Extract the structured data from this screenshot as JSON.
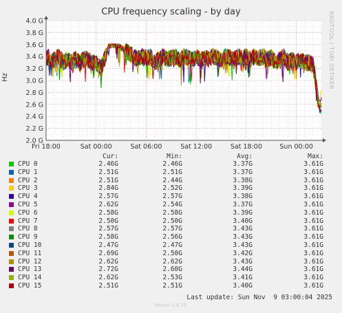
{
  "title": "CPU frequency scaling - by day",
  "side_label": "RRDTOOL / TOBI OETIKER",
  "legend_headers": {
    "cur": "Cur:",
    "min": "Min:",
    "avg": "Avg:",
    "max": "Max:"
  },
  "last_update": "Last update: Sun Nov  9 03:00:04 2025",
  "version": "Munin 2.0.73",
  "chart_data": {
    "type": "line",
    "title": "CPU frequency scaling - by day",
    "ylabel": "Hz",
    "ylim": [
      2.0,
      4.0
    ],
    "yunit": "G",
    "yticks": [
      "2.0 G",
      "2.2 G",
      "2.4 G",
      "2.6 G",
      "2.8 G",
      "3.0 G",
      "3.2 G",
      "3.4 G",
      "3.6 G",
      "3.8 G",
      "4.0 G"
    ],
    "yticks_values": [
      2.0,
      2.2,
      2.4,
      2.6,
      2.8,
      3.0,
      3.2,
      3.4,
      3.6,
      3.8,
      4.0
    ],
    "xrange_hours": [
      0,
      33
    ],
    "xticks": [
      {
        "label": "Fri 18:00",
        "hour": 0
      },
      {
        "label": "Sat 00:00",
        "hour": 6
      },
      {
        "label": "Sat 06:00",
        "hour": 12
      },
      {
        "label": "Sat 12:00",
        "hour": 18
      },
      {
        "label": "Sat 18:00",
        "hour": 24
      },
      {
        "label": "Sun 00:00",
        "hour": 30
      }
    ],
    "grid": true,
    "legend_position": "bottom",
    "profile_hours": [
      0,
      0.3,
      0.6,
      1,
      1.5,
      2,
      2.5,
      3,
      3.5,
      4,
      4.5,
      5,
      5.5,
      6,
      6.5,
      7,
      7.5,
      8,
      8.5,
      9,
      9.5,
      10,
      10.5,
      11,
      11.5,
      12,
      12.5,
      13,
      13.5,
      14,
      14.5,
      15,
      15.5,
      16,
      16.5,
      17,
      17.5,
      18,
      18.5,
      19,
      19.5,
      20,
      20.5,
      21,
      21.5,
      22,
      22.5,
      23,
      23.5,
      24,
      24.5,
      25,
      25.5,
      26,
      26.5,
      27,
      27.5,
      28,
      28.5,
      29,
      29.5,
      30,
      30.5,
      31,
      31.5,
      32,
      32.2,
      32.4,
      32.6,
      32.8,
      33
    ],
    "profile_ghz": [
      3.35,
      3.4,
      3.3,
      3.35,
      3.4,
      3.3,
      3.35,
      3.3,
      3.35,
      3.3,
      3.35,
      3.35,
      3.3,
      3.3,
      3.2,
      3.35,
      3.58,
      3.6,
      3.58,
      3.55,
      3.5,
      3.45,
      3.4,
      3.35,
      3.4,
      3.38,
      3.4,
      3.3,
      3.35,
      3.4,
      3.35,
      3.38,
      3.4,
      3.35,
      3.4,
      3.38,
      3.35,
      3.4,
      3.35,
      3.38,
      3.35,
      3.4,
      3.38,
      3.35,
      3.4,
      3.38,
      3.35,
      3.4,
      3.38,
      3.4,
      3.35,
      3.4,
      3.38,
      3.4,
      3.35,
      3.38,
      3.3,
      3.35,
      3.4,
      3.3,
      3.35,
      3.3,
      3.35,
      3.3,
      3.3,
      3.25,
      3.1,
      2.9,
      2.7,
      2.55,
      2.5
    ],
    "series": [
      {
        "name": "CPU 0",
        "color": "#00cc00",
        "cur": "2.46G",
        "min": "2.46G",
        "avg": "3.37G",
        "max": "3.61G"
      },
      {
        "name": "CPU 1",
        "color": "#0066b3",
        "cur": "2.51G",
        "min": "2.51G",
        "avg": "3.37G",
        "max": "3.61G"
      },
      {
        "name": "CPU 2",
        "color": "#ff8000",
        "cur": "2.51G",
        "min": "2.44G",
        "avg": "3.38G",
        "max": "3.61G"
      },
      {
        "name": "CPU 3",
        "color": "#ffcc00",
        "cur": "2.84G",
        "min": "2.52G",
        "avg": "3.39G",
        "max": "3.61G"
      },
      {
        "name": "CPU 4",
        "color": "#330099",
        "cur": "2.57G",
        "min": "2.57G",
        "avg": "3.38G",
        "max": "3.61G"
      },
      {
        "name": "CPU 5",
        "color": "#990099",
        "cur": "2.62G",
        "min": "2.54G",
        "avg": "3.37G",
        "max": "3.61G"
      },
      {
        "name": "CPU 6",
        "color": "#ccff00",
        "cur": "2.58G",
        "min": "2.58G",
        "avg": "3.39G",
        "max": "3.61G"
      },
      {
        "name": "CPU 7",
        "color": "#ff0000",
        "cur": "2.50G",
        "min": "2.50G",
        "avg": "3.40G",
        "max": "3.61G"
      },
      {
        "name": "CPU 8",
        "color": "#808080",
        "cur": "2.57G",
        "min": "2.57G",
        "avg": "3.43G",
        "max": "3.61G"
      },
      {
        "name": "CPU 9",
        "color": "#008f00",
        "cur": "2.58G",
        "min": "2.56G",
        "avg": "3.43G",
        "max": "3.61G"
      },
      {
        "name": "CPU 10",
        "color": "#00487d",
        "cur": "2.47G",
        "min": "2.47G",
        "avg": "3.43G",
        "max": "3.61G"
      },
      {
        "name": "CPU 11",
        "color": "#b35a00",
        "cur": "2.69G",
        "min": "2.50G",
        "avg": "3.42G",
        "max": "3.61G"
      },
      {
        "name": "CPU 12",
        "color": "#b38f00",
        "cur": "2.62G",
        "min": "2.62G",
        "avg": "3.43G",
        "max": "3.61G"
      },
      {
        "name": "CPU 13",
        "color": "#6b006b",
        "cur": "2.72G",
        "min": "2.60G",
        "avg": "3.44G",
        "max": "3.61G"
      },
      {
        "name": "CPU 14",
        "color": "#8fb300",
        "cur": "2.62G",
        "min": "2.53G",
        "avg": "3.41G",
        "max": "3.61G"
      },
      {
        "name": "CPU 15",
        "color": "#b30000",
        "cur": "2.51G",
        "min": "2.51G",
        "avg": "3.40G",
        "max": "3.61G"
      }
    ]
  }
}
